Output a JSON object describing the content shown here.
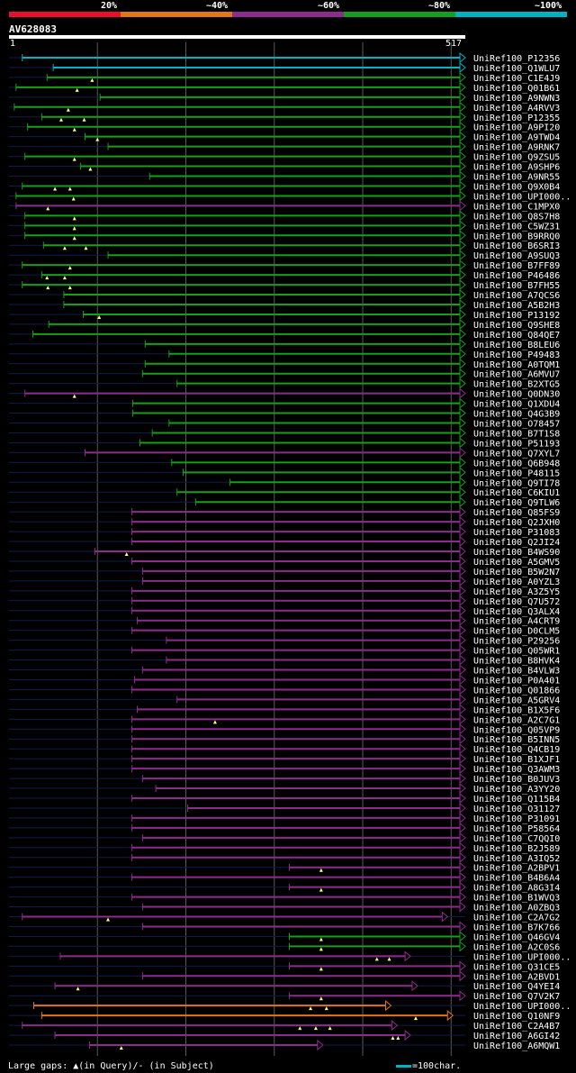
{
  "legend": {
    "labels": [
      "20%",
      "~40%",
      "~60%",
      "~80%",
      "~100%"
    ],
    "colors": [
      "#e8112d",
      "#e2761a",
      "#8e2c8e",
      "#15a01a",
      "#00b3c4"
    ]
  },
  "query": {
    "id": "AV628083",
    "start": "1",
    "end": "517"
  },
  "footer": {
    "gaps_text": "Large gaps: ▲(in Query)/- (in Subject)",
    "scale_text": "=100char."
  },
  "chart_data": {
    "type": "alignment",
    "query_length": 517,
    "scale_chars": 100,
    "rows": [
      {
        "label": "UniRef100_P12356",
        "color": "cyan",
        "start": 16,
        "end": 517,
        "tris": []
      },
      {
        "label": "UniRef100_Q1WLU7",
        "color": "cyan",
        "start": 51,
        "end": 517,
        "tris": []
      },
      {
        "label": "UniRef100_C1E4J9",
        "color": "green",
        "start": 44,
        "end": 517,
        "tris": [
          95
        ]
      },
      {
        "label": "UniRef100_Q01B61",
        "color": "green",
        "start": 9,
        "end": 517,
        "tris": [
          78
        ]
      },
      {
        "label": "UniRef100_A9NWN3",
        "color": "green",
        "start": 104,
        "end": 517,
        "tris": []
      },
      {
        "label": "UniRef100_A4RVV3",
        "color": "green",
        "start": 7,
        "end": 517,
        "tris": [
          68
        ]
      },
      {
        "label": "UniRef100_P12355",
        "color": "green",
        "start": 38,
        "end": 517,
        "tris": [
          60,
          86
        ]
      },
      {
        "label": "UniRef100_A9PI20",
        "color": "green",
        "start": 22,
        "end": 517,
        "tris": [
          75
        ]
      },
      {
        "label": "UniRef100_A9TWD4",
        "color": "green",
        "start": 87,
        "end": 517,
        "tris": [
          101
        ]
      },
      {
        "label": "UniRef100_A9RNK7",
        "color": "green",
        "start": 113,
        "end": 517,
        "tris": []
      },
      {
        "label": "UniRef100_Q9ZSU5",
        "color": "green",
        "start": 19,
        "end": 517,
        "tris": [
          75
        ]
      },
      {
        "label": "UniRef100_A9SHP6",
        "color": "green",
        "start": 82,
        "end": 517,
        "tris": [
          93
        ]
      },
      {
        "label": "UniRef100_A9NR55",
        "color": "green",
        "start": 160,
        "end": 517,
        "tris": []
      },
      {
        "label": "UniRef100_Q9X0B4",
        "color": "green",
        "start": 16,
        "end": 517,
        "tris": [
          53,
          70
        ]
      },
      {
        "label": "UniRef100_UPI000..",
        "color": "green",
        "start": 9,
        "end": 517,
        "tris": [
          74
        ]
      },
      {
        "label": "UniRef100_C1MPX0",
        "color": "magenta",
        "start": 9,
        "end": 517,
        "tris": [
          45
        ]
      },
      {
        "label": "UniRef100_Q8S7H8",
        "color": "green",
        "start": 19,
        "end": 517,
        "tris": [
          75
        ]
      },
      {
        "label": "UniRef100_C5WZ31",
        "color": "green",
        "start": 19,
        "end": 517,
        "tris": [
          75
        ]
      },
      {
        "label": "UniRef100_B9RRQ0",
        "color": "green",
        "start": 19,
        "end": 517,
        "tris": [
          75
        ]
      },
      {
        "label": "UniRef100_B6SRI3",
        "color": "green",
        "start": 40,
        "end": 517,
        "tris": [
          64,
          88
        ]
      },
      {
        "label": "UniRef100_A9SUQ3",
        "color": "green",
        "start": 113,
        "end": 517,
        "tris": []
      },
      {
        "label": "UniRef100_B7FF89",
        "color": "green",
        "start": 16,
        "end": 517,
        "tris": [
          70
        ]
      },
      {
        "label": "UniRef100_P46486",
        "color": "green",
        "start": 38,
        "end": 517,
        "tris": [
          44,
          64
        ]
      },
      {
        "label": "UniRef100_B7FH55",
        "color": "green",
        "start": 16,
        "end": 517,
        "tris": [
          45,
          70
        ]
      },
      {
        "label": "UniRef100_A7QCS6",
        "color": "green",
        "start": 63,
        "end": 517,
        "tris": []
      },
      {
        "label": "UniRef100_A5B2H3",
        "color": "green",
        "start": 63,
        "end": 517,
        "tris": []
      },
      {
        "label": "UniRef100_P13192",
        "color": "green",
        "start": 85,
        "end": 517,
        "tris": [
          103
        ]
      },
      {
        "label": "UniRef100_Q9SHE8",
        "color": "green",
        "start": 46,
        "end": 517,
        "tris": []
      },
      {
        "label": "UniRef100_Q84QE7",
        "color": "green",
        "start": 28,
        "end": 517,
        "tris": []
      },
      {
        "label": "UniRef100_B8LEU6",
        "color": "green",
        "start": 155,
        "end": 517,
        "tris": []
      },
      {
        "label": "UniRef100_P49483",
        "color": "green",
        "start": 182,
        "end": 517,
        "tris": []
      },
      {
        "label": "UniRef100_A0TQM1",
        "color": "green",
        "start": 155,
        "end": 517,
        "tris": []
      },
      {
        "label": "UniRef100_A6MVU7",
        "color": "green",
        "start": 152,
        "end": 517,
        "tris": []
      },
      {
        "label": "UniRef100_B2XTG5",
        "color": "green",
        "start": 191,
        "end": 517,
        "tris": []
      },
      {
        "label": "UniRef100_Q0DN30",
        "color": "magenta",
        "start": 19,
        "end": 517,
        "tris": [
          75
        ]
      },
      {
        "label": "UniRef100_Q1XDU4",
        "color": "green",
        "start": 141,
        "end": 517,
        "tris": []
      },
      {
        "label": "UniRef100_Q4G3B9",
        "color": "green",
        "start": 141,
        "end": 517,
        "tris": []
      },
      {
        "label": "UniRef100_O78457",
        "color": "green",
        "start": 182,
        "end": 517,
        "tris": []
      },
      {
        "label": "UniRef100_B7T1S8",
        "color": "green",
        "start": 163,
        "end": 517,
        "tris": []
      },
      {
        "label": "UniRef100_P51193",
        "color": "green",
        "start": 149,
        "end": 517,
        "tris": []
      },
      {
        "label": "UniRef100_Q7XYL7",
        "color": "magenta",
        "start": 87,
        "end": 517,
        "tris": []
      },
      {
        "label": "UniRef100_Q6B948",
        "color": "green",
        "start": 185,
        "end": 517,
        "tris": []
      },
      {
        "label": "UniRef100_P48115",
        "color": "green",
        "start": 198,
        "end": 517,
        "tris": []
      },
      {
        "label": "UniRef100_Q9TI78",
        "color": "green",
        "start": 251,
        "end": 517,
        "tris": []
      },
      {
        "label": "UniRef100_C6KIU1",
        "color": "green",
        "start": 191,
        "end": 517,
        "tris": []
      },
      {
        "label": "UniRef100_Q9TLW6",
        "color": "green",
        "start": 212,
        "end": 517,
        "tris": []
      },
      {
        "label": "UniRef100_Q85FS9",
        "color": "magenta",
        "start": 140,
        "end": 517,
        "tris": []
      },
      {
        "label": "UniRef100_Q2JXH0",
        "color": "magenta",
        "start": 140,
        "end": 517,
        "tris": []
      },
      {
        "label": "UniRef100_P31083",
        "color": "magenta",
        "start": 140,
        "end": 517,
        "tris": []
      },
      {
        "label": "UniRef100_Q2JI24",
        "color": "magenta",
        "start": 140,
        "end": 517,
        "tris": []
      },
      {
        "label": "UniRef100_B4WS90",
        "color": "magenta",
        "start": 98,
        "end": 517,
        "tris": [
          134
        ]
      },
      {
        "label": "UniRef100_A5GMV5",
        "color": "magenta",
        "start": 140,
        "end": 517,
        "tris": []
      },
      {
        "label": "UniRef100_B5W2N7",
        "color": "magenta",
        "start": 152,
        "end": 517,
        "tris": []
      },
      {
        "label": "UniRef100_A0YZL3",
        "color": "magenta",
        "start": 152,
        "end": 517,
        "tris": []
      },
      {
        "label": "UniRef100_A3Z5Y5",
        "color": "magenta",
        "start": 140,
        "end": 517,
        "tris": []
      },
      {
        "label": "UniRef100_Q7U572",
        "color": "magenta",
        "start": 140,
        "end": 517,
        "tris": []
      },
      {
        "label": "UniRef100_Q3ALX4",
        "color": "magenta",
        "start": 140,
        "end": 517,
        "tris": []
      },
      {
        "label": "UniRef100_A4CRT9",
        "color": "magenta",
        "start": 146,
        "end": 517,
        "tris": []
      },
      {
        "label": "UniRef100_D0CLM5",
        "color": "magenta",
        "start": 140,
        "end": 517,
        "tris": []
      },
      {
        "label": "UniRef100_P29256",
        "color": "magenta",
        "start": 179,
        "end": 517,
        "tris": []
      },
      {
        "label": "UniRef100_Q05WR1",
        "color": "magenta",
        "start": 140,
        "end": 517,
        "tris": []
      },
      {
        "label": "UniRef100_B8HVK4",
        "color": "magenta",
        "start": 179,
        "end": 517,
        "tris": []
      },
      {
        "label": "UniRef100_B4VLW3",
        "color": "magenta",
        "start": 152,
        "end": 517,
        "tris": []
      },
      {
        "label": "UniRef100_P0A401",
        "color": "magenta",
        "start": 143,
        "end": 517,
        "tris": []
      },
      {
        "label": "UniRef100_Q01866",
        "color": "magenta",
        "start": 140,
        "end": 517,
        "tris": []
      },
      {
        "label": "UniRef100_A5GRV4",
        "color": "magenta",
        "start": 191,
        "end": 517,
        "tris": []
      },
      {
        "label": "UniRef100_B1X5F6",
        "color": "magenta",
        "start": 146,
        "end": 517,
        "tris": []
      },
      {
        "label": "UniRef100_A2C7G1",
        "color": "magenta",
        "start": 140,
        "end": 517,
        "tris": [
          234
        ]
      },
      {
        "label": "UniRef100_Q05VP9",
        "color": "magenta",
        "start": 140,
        "end": 517,
        "tris": []
      },
      {
        "label": "UniRef100_B5INN5",
        "color": "magenta",
        "start": 140,
        "end": 517,
        "tris": []
      },
      {
        "label": "UniRef100_Q4CB19",
        "color": "magenta",
        "start": 140,
        "end": 517,
        "tris": []
      },
      {
        "label": "UniRef100_B1XJF1",
        "color": "magenta",
        "start": 140,
        "end": 517,
        "tris": []
      },
      {
        "label": "UniRef100_Q3AWM3",
        "color": "magenta",
        "start": 140,
        "end": 517,
        "tris": []
      },
      {
        "label": "UniRef100_B0JUV3",
        "color": "magenta",
        "start": 152,
        "end": 517,
        "tris": []
      },
      {
        "label": "UniRef100_A3YY20",
        "color": "magenta",
        "start": 167,
        "end": 517,
        "tris": []
      },
      {
        "label": "UniRef100_Q115B4",
        "color": "magenta",
        "start": 140,
        "end": 517,
        "tris": []
      },
      {
        "label": "UniRef100_O31127",
        "color": "magenta",
        "start": 203,
        "end": 517,
        "tris": []
      },
      {
        "label": "UniRef100_P31091",
        "color": "magenta",
        "start": 140,
        "end": 517,
        "tris": []
      },
      {
        "label": "UniRef100_P58564",
        "color": "magenta",
        "start": 140,
        "end": 517,
        "tris": []
      },
      {
        "label": "UniRef100_C7QQI0",
        "color": "magenta",
        "start": 152,
        "end": 517,
        "tris": []
      },
      {
        "label": "UniRef100_B2J589",
        "color": "magenta",
        "start": 140,
        "end": 517,
        "tris": []
      },
      {
        "label": "UniRef100_A3IQ52",
        "color": "magenta",
        "start": 140,
        "end": 517,
        "tris": []
      },
      {
        "label": "UniRef100_A2BPV1",
        "color": "magenta",
        "start": 318,
        "end": 517,
        "tris": [
          354
        ]
      },
      {
        "label": "UniRef100_B4B6A4",
        "color": "magenta",
        "start": 140,
        "end": 517,
        "tris": []
      },
      {
        "label": "UniRef100_A8G3I4",
        "color": "magenta",
        "start": 318,
        "end": 517,
        "tris": [
          354
        ]
      },
      {
        "label": "UniRef100_B1WVQ3",
        "color": "magenta",
        "start": 140,
        "end": 517,
        "tris": []
      },
      {
        "label": "UniRef100_A0ZBQ3",
        "color": "magenta",
        "start": 152,
        "end": 517,
        "tris": []
      },
      {
        "label": "UniRef100_C2A7G2",
        "color": "magenta",
        "start": 16,
        "end": 497,
        "tris": [
          113
        ]
      },
      {
        "label": "UniRef100_B7K766",
        "color": "magenta",
        "start": 152,
        "end": 517,
        "tris": []
      },
      {
        "label": "UniRef100_Q46GV4",
        "color": "green",
        "start": 318,
        "end": 517,
        "tris": [
          354
        ]
      },
      {
        "label": "UniRef100_A2C0S6",
        "color": "green",
        "start": 318,
        "end": 517,
        "tris": [
          354
        ]
      },
      {
        "label": "UniRef100_UPI000..",
        "color": "magenta",
        "start": 59,
        "end": 455,
        "tris": [
          417,
          431
        ]
      },
      {
        "label": "UniRef100_Q31CE5",
        "color": "magenta",
        "start": 318,
        "end": 517,
        "tris": [
          354
        ]
      },
      {
        "label": "UniRef100_A2BVD1",
        "color": "magenta",
        "start": 152,
        "end": 517,
        "tris": []
      },
      {
        "label": "UniRef100_Q4YEI4",
        "color": "magenta",
        "start": 53,
        "end": 463,
        "tris": [
          79
        ]
      },
      {
        "label": "UniRef100_Q7V2K7",
        "color": "magenta",
        "start": 318,
        "end": 517,
        "tris": [
          354
        ]
      },
      {
        "label": "UniRef100_UPI000..",
        "color": "orange",
        "start": 29,
        "end": 433,
        "tris": [
          342,
          360
        ]
      },
      {
        "label": "UniRef100_Q10NF9",
        "color": "orange",
        "start": 38,
        "end": 503,
        "tris": [
          461
        ]
      },
      {
        "label": "UniRef100_C2A4B7",
        "color": "magenta",
        "start": 16,
        "end": 440,
        "tris": [
          330,
          348,
          364
        ]
      },
      {
        "label": "UniRef100_A6GI42",
        "color": "magenta",
        "start": 53,
        "end": 455,
        "tris": [
          435,
          441
        ]
      },
      {
        "label": "UniRef100_A6MQW1",
        "color": "magenta",
        "start": 92,
        "end": 356,
        "tris": [
          128
        ]
      }
    ]
  }
}
